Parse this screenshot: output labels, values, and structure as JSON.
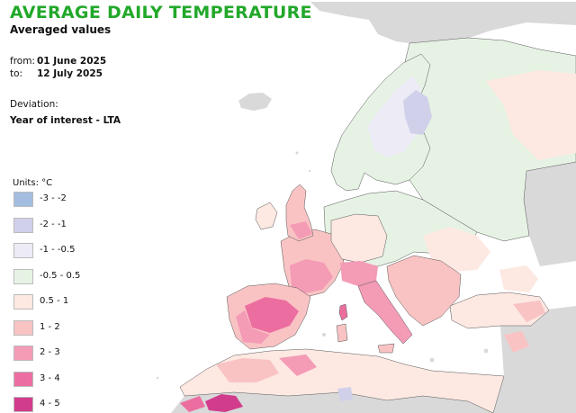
{
  "header": {
    "title": "AVERAGE DAILY TEMPERATURE",
    "subtitle": "Averaged values"
  },
  "period": {
    "from_label": "from:",
    "from_value": "01 June 2025",
    "to_label": "to:",
    "to_value": "12 July 2025"
  },
  "deviation": {
    "label": "Deviation:",
    "value": "Year of interest - LTA"
  },
  "legend": {
    "units": "Units: °C",
    "items": [
      {
        "label": "-3 - -2",
        "color": "#a3bde0"
      },
      {
        "label": "-2 - -1",
        "color": "#d0d0ea"
      },
      {
        "label": "-1 - -0.5",
        "color": "#ecebf6"
      },
      {
        "label": "-0.5 - 0.5",
        "color": "#e6f3e4"
      },
      {
        "label": "0.5 - 1",
        "color": "#fde8e2"
      },
      {
        "label": "1 - 2",
        "color": "#f9c3c4"
      },
      {
        "label": "2 - 3",
        "color": "#f49bb6"
      },
      {
        "label": "3 - 4",
        "color": "#ec6ea0"
      },
      {
        "label": "4 - 5",
        "color": "#d23c8c"
      }
    ]
  },
  "map": {
    "no_data_color": "#d9d9d9",
    "sea_color": "#ffffff"
  }
}
